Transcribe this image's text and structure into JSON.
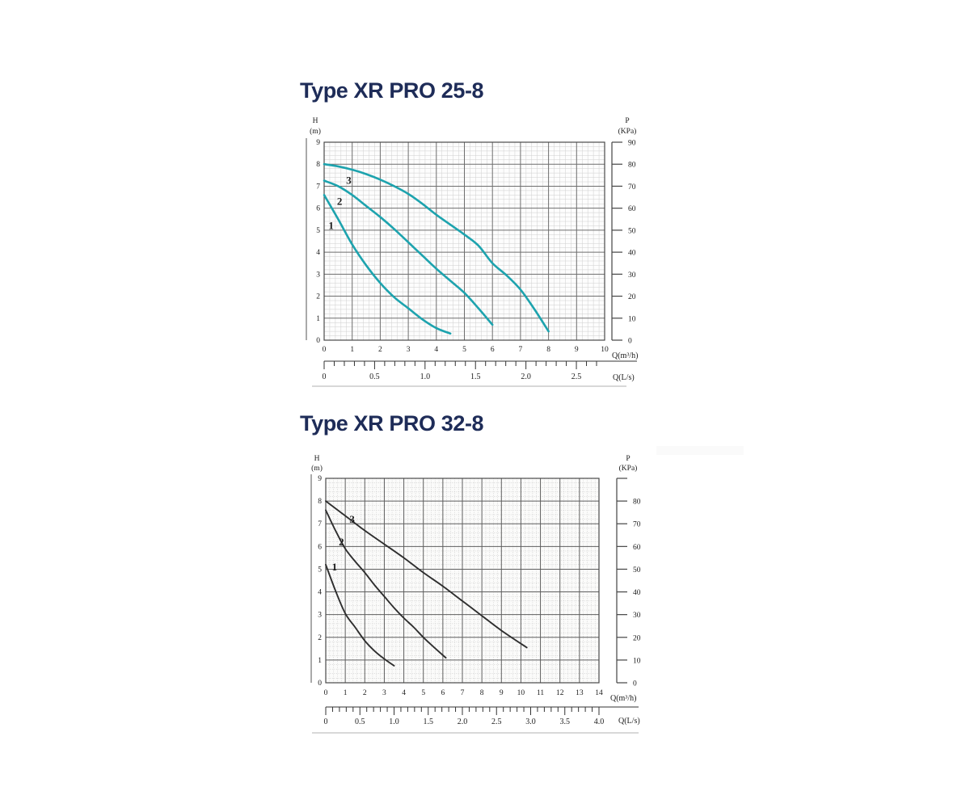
{
  "page": {
    "background": "#ffffff"
  },
  "chart_data": [
    {
      "type": "line",
      "title": "Type XR PRO 25-8",
      "title_color": "#1e2c58",
      "x_axis": {
        "label": "Q(m³/h)",
        "min": 0,
        "max": 10,
        "tick_labels": [
          "0",
          "1",
          "2",
          "3",
          "4",
          "5",
          "6",
          "7",
          "8",
          "9",
          "10"
        ]
      },
      "x_axis_secondary": {
        "label": "Q(L/s)",
        "min": 0,
        "max": 2.78,
        "minor_step": 0.1,
        "labels": [
          {
            "v": 0,
            "t": "0"
          },
          {
            "v": 0.5,
            "t": "0.5"
          },
          {
            "v": 1.0,
            "t": "1.0"
          },
          {
            "v": 1.5,
            "t": "1.5"
          },
          {
            "v": 2.0,
            "t": "2.0"
          },
          {
            "v": 2.5,
            "t": "2.5"
          }
        ]
      },
      "y_axis_left": {
        "symbol": "H",
        "unit": "(m)",
        "min": 0,
        "max": 9,
        "tick_labels": [
          "0",
          "1",
          "2",
          "3",
          "4",
          "5",
          "6",
          "7",
          "8",
          "9"
        ]
      },
      "y_axis_right": {
        "symbol": "P",
        "unit": "(KPa)",
        "min": 0,
        "max": 90,
        "ticks": [
          {
            "v": 90,
            "t": "90"
          },
          {
            "v": 80,
            "t": "80"
          },
          {
            "v": 70,
            "t": "70"
          },
          {
            "v": 60,
            "t": "60"
          },
          {
            "v": 50,
            "t": "50"
          },
          {
            "v": 40,
            "t": "40"
          },
          {
            "v": 30,
            "t": "30"
          },
          {
            "v": 20,
            "t": "20"
          },
          {
            "v": 10,
            "t": "10"
          },
          {
            "v": 0,
            "t": "0"
          }
        ]
      },
      "grid": {
        "major_step": 1,
        "minor_step": 0.2
      },
      "curve_color": "#1da3ae",
      "series": [
        {
          "name": "1",
          "label_pos": [
            0.25,
            5.05
          ],
          "points": [
            [
              0,
              6.6
            ],
            [
              0.5,
              5.5
            ],
            [
              1,
              4.35
            ],
            [
              1.5,
              3.4
            ],
            [
              2,
              2.6
            ],
            [
              2.5,
              1.95
            ],
            [
              3,
              1.45
            ],
            [
              3.5,
              0.95
            ],
            [
              4,
              0.55
            ],
            [
              4.5,
              0.3
            ]
          ]
        },
        {
          "name": "2",
          "label_pos": [
            0.55,
            6.15
          ],
          "points": [
            [
              0,
              7.25
            ],
            [
              0.5,
              7.0
            ],
            [
              1,
              6.6
            ],
            [
              1.5,
              6.1
            ],
            [
              2,
              5.6
            ],
            [
              2.5,
              5.05
            ],
            [
              3,
              4.45
            ],
            [
              3.5,
              3.85
            ],
            [
              4,
              3.25
            ],
            [
              4.5,
              2.7
            ],
            [
              5,
              2.15
            ],
            [
              5.5,
              1.45
            ],
            [
              6,
              0.7
            ]
          ]
        },
        {
          "name": "3",
          "label_pos": [
            0.88,
            7.1
          ],
          "points": [
            [
              0,
              8.0
            ],
            [
              0.5,
              7.9
            ],
            [
              1,
              7.75
            ],
            [
              1.5,
              7.55
            ],
            [
              2,
              7.3
            ],
            [
              2.5,
              7.0
            ],
            [
              3,
              6.65
            ],
            [
              3.5,
              6.2
            ],
            [
              4,
              5.7
            ],
            [
              4.5,
              5.25
            ],
            [
              5,
              4.8
            ],
            [
              5.5,
              4.3
            ],
            [
              6,
              3.5
            ],
            [
              6.5,
              2.95
            ],
            [
              7,
              2.3
            ],
            [
              7.5,
              1.4
            ],
            [
              8,
              0.4
            ]
          ]
        }
      ]
    },
    {
      "type": "line",
      "title": "Type XR PRO 32-8",
      "title_color": "#1e2c58",
      "x_axis": {
        "label": "Q(m³/h)",
        "min": 0,
        "max": 14,
        "tick_labels": [
          "0",
          "1",
          "2",
          "3",
          "4",
          "5",
          "6",
          "7",
          "8",
          "9",
          "10",
          "11",
          "12",
          "13",
          "14"
        ]
      },
      "x_axis_secondary": {
        "label": "Q(L/s)",
        "min": 0,
        "max": 4.0,
        "minor_step": 0.1,
        "labels": [
          {
            "v": 0,
            "t": "0"
          },
          {
            "v": 0.5,
            "t": "0.5"
          },
          {
            "v": 1.0,
            "t": "1.0"
          },
          {
            "v": 1.5,
            "t": "1.5"
          },
          {
            "v": 2.0,
            "t": "2.0"
          },
          {
            "v": 2.5,
            "t": "2.5"
          },
          {
            "v": 3.0,
            "t": "3.0"
          },
          {
            "v": 3.5,
            "t": "3.5"
          },
          {
            "v": 4.0,
            "t": "4.0"
          }
        ]
      },
      "y_axis_left": {
        "symbol": "H",
        "unit": "(m)",
        "min": 0,
        "max": 9,
        "tick_labels": [
          "0",
          "1",
          "2",
          "3",
          "4",
          "5",
          "6",
          "7",
          "8",
          "9"
        ]
      },
      "y_axis_right": {
        "symbol": "P",
        "unit": "(KPa)",
        "min": 0,
        "max": 90,
        "ticks": [
          {
            "v": 90,
            "t": ""
          },
          {
            "v": 80,
            "t": "80"
          },
          {
            "v": 70,
            "t": "70"
          },
          {
            "v": 60,
            "t": "60"
          },
          {
            "v": 50,
            "t": "50"
          },
          {
            "v": 40,
            "t": "40"
          },
          {
            "v": 30,
            "t": "30"
          },
          {
            "v": 20,
            "t": "20"
          },
          {
            "v": 10,
            "t": "10"
          },
          {
            "v": 0,
            "t": "0"
          }
        ]
      },
      "grid": {
        "major_step": 1,
        "minor_step": 0.2
      },
      "curve_color": "#2e2e2e",
      "series": [
        {
          "name": "1",
          "label_pos": [
            0.45,
            4.95
          ],
          "points": [
            [
              0,
              5.2
            ],
            [
              0.5,
              4.05
            ],
            [
              1,
              3.05
            ],
            [
              1.5,
              2.45
            ],
            [
              2,
              1.85
            ],
            [
              2.5,
              1.4
            ],
            [
              3,
              1.05
            ],
            [
              3.5,
              0.75
            ]
          ]
        },
        {
          "name": "2",
          "label_pos": [
            0.8,
            6.05
          ],
          "points": [
            [
              0,
              7.6
            ],
            [
              0.5,
              6.7
            ],
            [
              1,
              5.9
            ],
            [
              1.5,
              5.35
            ],
            [
              2,
              4.85
            ],
            [
              2.5,
              4.3
            ],
            [
              3,
              3.8
            ],
            [
              3.5,
              3.3
            ],
            [
              4,
              2.85
            ],
            [
              4.5,
              2.45
            ],
            [
              5,
              2.0
            ],
            [
              5.5,
              1.6
            ],
            [
              6.15,
              1.1
            ]
          ]
        },
        {
          "name": "3",
          "label_pos": [
            1.35,
            7.05
          ],
          "points": [
            [
              0,
              8.0
            ],
            [
              1,
              7.35
            ],
            [
              2,
              6.7
            ],
            [
              3,
              6.1
            ],
            [
              4,
              5.5
            ],
            [
              5,
              4.85
            ],
            [
              6,
              4.25
            ],
            [
              7,
              3.6
            ],
            [
              8,
              2.95
            ],
            [
              9,
              2.3
            ],
            [
              10.3,
              1.55
            ]
          ]
        }
      ]
    }
  ]
}
